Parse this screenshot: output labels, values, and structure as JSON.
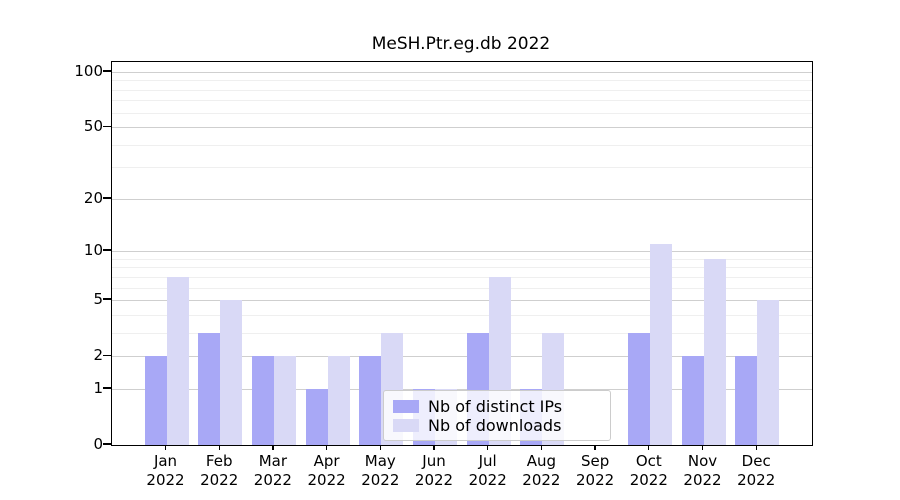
{
  "title": "MeSH.Ptr.eg.db 2022",
  "chart_data": {
    "type": "bar",
    "title": "MeSH.Ptr.eg.db 2022",
    "categories": [
      "Jan",
      "Feb",
      "Mar",
      "Apr",
      "May",
      "Jun",
      "Jul",
      "Aug",
      "Sep",
      "Oct",
      "Nov",
      "Dec"
    ],
    "category_year": "2022",
    "series": [
      {
        "name": "Nb of distinct IPs",
        "color": "#a8a8f6",
        "values": [
          2,
          3,
          2,
          1,
          2,
          1,
          3,
          1,
          0,
          3,
          2,
          2
        ]
      },
      {
        "name": "Nb of downloads",
        "color": "#d9d9f6",
        "values": [
          7,
          5,
          2,
          2,
          3,
          1,
          7,
          3,
          0,
          11,
          9,
          5
        ]
      }
    ],
    "y_scale": "log1p",
    "y_ticks": [
      0,
      1,
      2,
      5,
      10,
      20,
      50,
      100
    ],
    "y_minor_ticks": [
      3,
      4,
      6,
      7,
      8,
      9,
      30,
      40,
      60,
      70,
      80,
      90
    ],
    "ylim": [
      0,
      113
    ],
    "xlabel": "",
    "ylabel": "",
    "grid": true,
    "legend_position": "lower center"
  },
  "colors": {
    "major_grid": "#cfcfcf",
    "minor_grid": "#efefef",
    "spine": "#000000",
    "legend_border": "#cccccc",
    "background": "#ffffff"
  }
}
